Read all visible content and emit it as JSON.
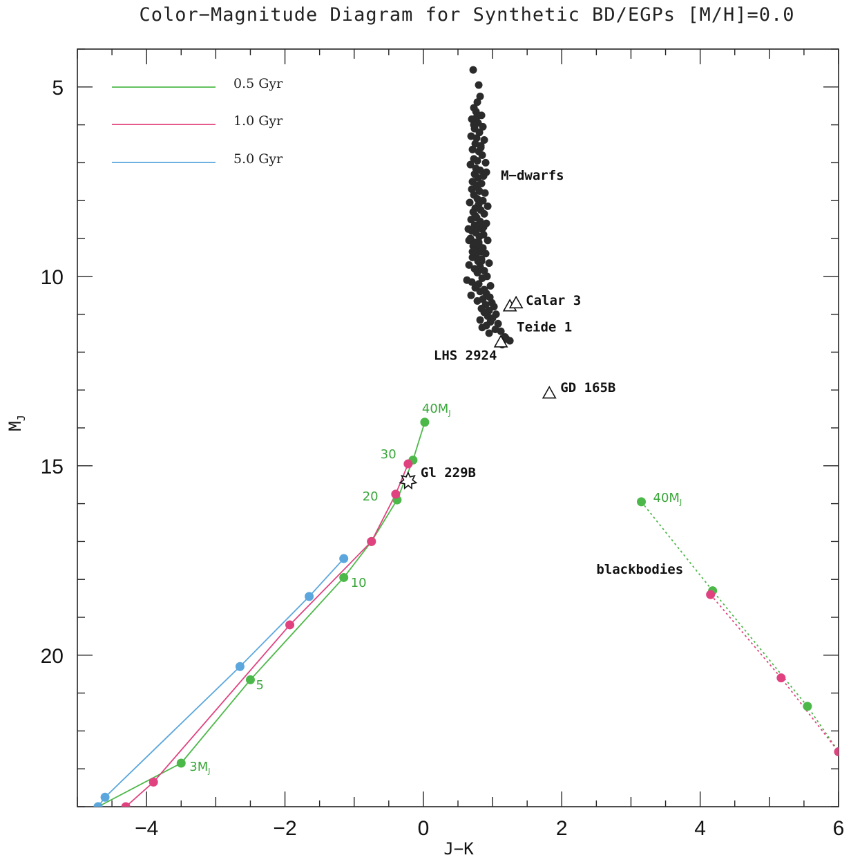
{
  "chart_data": {
    "type": "scatter",
    "title": "Color−Magnitude Diagram for Synthetic BD/EGPs  [M/H]=0.0",
    "xlabel": "J−K",
    "ylabel": "M",
    "ylabel_sub": "J",
    "xlim": [
      -5,
      6
    ],
    "ylim": [
      4,
      24
    ],
    "y_inverted": true,
    "x_major_ticks": [
      -4,
      -2,
      0,
      2,
      4,
      6
    ],
    "x_tick_labels": [
      "−4",
      "−2",
      "0",
      "2",
      "4",
      "6"
    ],
    "y_major_ticks": [
      5,
      10,
      15,
      20
    ],
    "y_tick_labels": [
      "5",
      "10",
      "15",
      "20"
    ],
    "legend_position": "top-left",
    "colors": {
      "green": "#4cb849",
      "magenta": "#e0427f",
      "blue": "#5aa6dd",
      "dark": "#2b2b2b"
    },
    "series": [
      {
        "name": "0.5 Gyr",
        "color": "#4cb849",
        "x": [
          -4.7,
          -3.5,
          -2.5,
          -1.15,
          -0.75,
          -0.38,
          -0.15,
          0.02
        ],
        "y": [
          24.0,
          22.85,
          20.65,
          17.95,
          17.0,
          15.9,
          14.85,
          13.85
        ]
      },
      {
        "name": "1.0 Gyr",
        "color": "#e0427f",
        "x": [
          -4.3,
          -3.9,
          -1.93,
          -0.75,
          -0.4,
          -0.22
        ],
        "y": [
          24.0,
          23.35,
          19.2,
          17.0,
          15.75,
          14.95
        ]
      },
      {
        "name": "5.0 Gyr",
        "color": "#5aa6dd",
        "x": [
          -4.7,
          -4.6,
          -2.65,
          -1.65,
          -1.15
        ],
        "y": [
          24.0,
          23.75,
          20.3,
          18.45,
          17.45
        ]
      }
    ],
    "blackbody_series": [
      {
        "color": "#4cb849",
        "x": [
          3.15,
          4.18,
          5.55,
          6.0
        ],
        "y": [
          15.95,
          18.3,
          21.35,
          22.55
        ]
      },
      {
        "color": "#e0427f",
        "x": [
          4.15,
          5.17,
          6.0
        ],
        "y": [
          18.4,
          20.6,
          22.55
        ]
      }
    ],
    "m_dwarfs": {
      "color": "#2b2b2b",
      "x": [
        0.72,
        0.8,
        0.82,
        0.78,
        0.73,
        0.76,
        0.84,
        0.7,
        0.79,
        0.86,
        0.74,
        0.81,
        0.69,
        0.77,
        0.88,
        0.75,
        0.83,
        0.71,
        0.8,
        0.85,
        0.73,
        0.78,
        0.9,
        0.68,
        0.76,
        0.82,
        0.74,
        0.87,
        0.79,
        0.71,
        0.84,
        0.77,
        0.7,
        0.81,
        0.89,
        0.73,
        0.78,
        0.86,
        0.67,
        0.8,
        0.75,
        0.83,
        0.72,
        0.88,
        0.77,
        0.69,
        0.82,
        0.91,
        0.74,
        0.79,
        0.85,
        0.7,
        0.76,
        0.87,
        0.81,
        0.68,
        0.93,
        0.74,
        0.8,
        0.72,
        0.86,
        0.78,
        0.65,
        0.83,
        0.9,
        0.76,
        0.71,
        0.84,
        0.79,
        0.95,
        0.66,
        0.82,
        0.74,
        0.88,
        0.78,
        0.63,
        0.92,
        0.85,
        0.7,
        0.8,
        0.97,
        0.75,
        0.88,
        0.82,
        0.91,
        0.69,
        0.96,
        0.86,
        0.78,
        0.99,
        0.9,
        1.02,
        0.84,
        0.95,
        0.66,
        0.88,
        1.05,
        0.93,
        1.0,
        0.82,
        0.97,
        1.08,
        0.91,
        0.85,
        1.04,
        1.12,
        0.95,
        1.18,
        1.2,
        1.25,
        1.14,
        0.83,
        0.91,
        0.78,
        0.93,
        0.75,
        0.87,
        0.8,
        0.71,
        0.84,
        0.77,
        0.73
      ],
      "y": [
        4.55,
        4.95,
        5.25,
        5.4,
        5.55,
        5.65,
        5.75,
        5.85,
        5.95,
        6.05,
        6.1,
        6.2,
        6.3,
        6.35,
        6.4,
        6.5,
        6.55,
        6.65,
        6.7,
        6.8,
        6.9,
        6.95,
        7.0,
        7.05,
        7.15,
        7.2,
        7.3,
        7.35,
        7.4,
        7.5,
        7.55,
        7.6,
        7.7,
        7.75,
        7.8,
        7.85,
        7.95,
        8.0,
        8.05,
        8.1,
        8.2,
        8.25,
        8.3,
        8.35,
        8.45,
        8.5,
        8.55,
        8.6,
        8.65,
        8.7,
        8.75,
        8.8,
        8.85,
        8.9,
        8.95,
        9.0,
        9.05,
        9.1,
        9.15,
        9.2,
        9.25,
        9.3,
        8.75,
        9.35,
        9.4,
        9.45,
        9.5,
        9.55,
        9.6,
        9.65,
        9.7,
        9.75,
        9.8,
        9.85,
        9.9,
        10.1,
        10.0,
        10.05,
        10.15,
        10.2,
        10.25,
        10.3,
        10.35,
        10.4,
        10.45,
        10.5,
        10.55,
        10.6,
        10.65,
        10.7,
        10.75,
        10.8,
        10.85,
        10.9,
        9.05,
        10.95,
        11.0,
        11.05,
        11.1,
        11.15,
        11.2,
        11.25,
        11.3,
        11.35,
        11.4,
        11.45,
        11.5,
        11.6,
        11.65,
        11.7,
        11.8,
        6.6,
        7.25,
        7.65,
        8.15,
        8.4,
        8.7,
        9.1,
        9.35,
        9.6,
        5.8,
        6.0
      ]
    },
    "triangles": [
      {
        "x": 1.25,
        "y": 10.8
      },
      {
        "x": 1.34,
        "y": 10.72
      },
      {
        "x": 1.12,
        "y": 11.75
      },
      {
        "x": 1.82,
        "y": 13.1
      }
    ],
    "star": {
      "x": -0.22,
      "y": 15.4
    },
    "annotations": [
      {
        "text": "M−dwarfs",
        "x": 1.12,
        "y": 7.45,
        "style": "black"
      },
      {
        "text": "Calar 3",
        "x": 1.48,
        "y": 10.75,
        "style": "black"
      },
      {
        "text": "Teide 1",
        "x": 1.35,
        "y": 11.45,
        "style": "black"
      },
      {
        "text": "LHS 2924",
        "x": 0.15,
        "y": 12.2,
        "style": "black"
      },
      {
        "text": "GD 165B",
        "x": 1.98,
        "y": 13.05,
        "style": "black"
      },
      {
        "text": "Gl 229B",
        "x": -0.04,
        "y": 15.3,
        "style": "black"
      },
      {
        "text": "blackbodies",
        "x": 2.5,
        "y": 17.85,
        "style": "black"
      },
      {
        "text": "40M",
        "sub": "J",
        "x": -0.02,
        "y": 13.6,
        "style": "green"
      },
      {
        "text": "30",
        "x": -0.62,
        "y": 14.8,
        "style": "green"
      },
      {
        "text": "20",
        "x": -0.88,
        "y": 15.92,
        "style": "green"
      },
      {
        "text": "10",
        "x": -1.05,
        "y": 18.2,
        "style": "green"
      },
      {
        "text": "5",
        "x": -2.42,
        "y": 20.9,
        "style": "green"
      },
      {
        "text": "3M",
        "sub": "J",
        "x": -3.38,
        "y": 23.05,
        "style": "green"
      },
      {
        "text": "40M",
        "sub": "J",
        "x": 3.32,
        "y": 15.95,
        "style": "green"
      }
    ]
  }
}
